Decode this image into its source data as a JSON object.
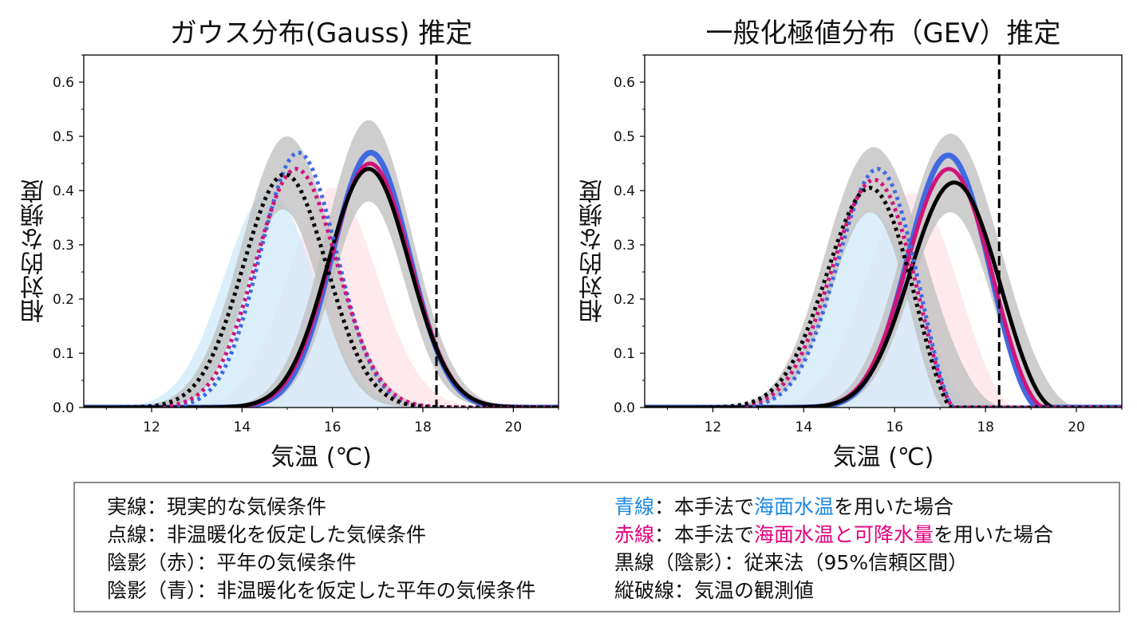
{
  "colors": {
    "blue": "#4169e1",
    "pink": "#d0147a",
    "black": "#000000",
    "gray_band": "#bdbdbd",
    "light_blue_fill": "#cfeaf8",
    "light_pink_fill": "#fde1e7",
    "legend_blue_text": "#1e88e5",
    "legend_pink_text": "#e6007e"
  },
  "legend": {
    "solid": "実線：現実的な気候条件",
    "dotted": "点線：非温暖化を仮定した気候条件",
    "shade_red": "陰影（赤）：平年の気候条件",
    "shade_blue": "陰影（青）：非温暖化を仮定した平年の気候条件",
    "blue_prefix": "青線",
    "blue_mid": "：本手法で",
    "blue_key": "海面水温",
    "blue_suffix": "を用いた場合",
    "red_prefix": "赤線",
    "red_mid": "：本手法で",
    "red_key": "海面水温と可降水量",
    "red_suffix": "を用いた場合",
    "black": "黒線（陰影）：従来法（95%信頼区間）",
    "vline": "縦破線：気温の観測値"
  },
  "chart_data": [
    {
      "type": "line",
      "title": "ガウス分布(Gauss) 推定",
      "xlabel": "気温 (℃)",
      "ylabel": "相対的な頻度",
      "xlim": [
        10.5,
        21
      ],
      "ylim": [
        0,
        0.65
      ],
      "xticks": [
        12,
        14,
        16,
        18,
        20
      ],
      "xticklabels": [
        "12",
        "14",
        "16",
        "18",
        "20"
      ],
      "yticks": [
        0.0,
        0.1,
        0.2,
        0.3,
        0.4,
        0.5,
        0.6
      ],
      "yticklabels": [
        "0.0",
        "0.1",
        "0.2",
        "0.3",
        "0.4",
        "0.5",
        "0.6"
      ],
      "observed_x": 18.3,
      "shades": [
        {
          "color": "light_pink",
          "dist": "gauss",
          "mu": 16.0,
          "sigma": 0.98,
          "peak": 0.405
        },
        {
          "color": "light_blue",
          "dist": "gauss",
          "mu": 14.6,
          "sigma": 0.99,
          "peak": 0.4
        }
      ],
      "bands": [
        {
          "dist": "gauss",
          "lower": {
            "mu": 16.8,
            "sigma": 0.8,
            "peak": 0.38
          },
          "upper": {
            "mu": 16.8,
            "sigma": 0.95,
            "peak": 0.53
          }
        },
        {
          "dist": "gauss",
          "lower": {
            "mu": 14.9,
            "sigma": 0.8,
            "peak": 0.365
          },
          "upper": {
            "mu": 15.0,
            "sigma": 1.0,
            "peak": 0.5
          }
        }
      ],
      "series": [
        {
          "name": "青線",
          "color": "blue",
          "style": "solid",
          "dist": "gauss",
          "mu": 16.85,
          "sigma": 0.845,
          "peak": 0.47
        },
        {
          "name": "赤線",
          "color": "pink",
          "style": "solid",
          "dist": "gauss",
          "mu": 16.83,
          "sigma": 0.88,
          "peak": 0.45
        },
        {
          "name": "黒線",
          "color": "black",
          "style": "solid",
          "dist": "gauss",
          "mu": 16.8,
          "sigma": 0.895,
          "peak": 0.44
        },
        {
          "name": "青線",
          "color": "blue",
          "style": "dotted",
          "dist": "gauss",
          "mu": 15.25,
          "sigma": 0.845,
          "peak": 0.47
        },
        {
          "name": "赤線",
          "color": "pink",
          "style": "dotted",
          "dist": "gauss",
          "mu": 15.2,
          "sigma": 0.9,
          "peak": 0.44
        },
        {
          "name": "黒線",
          "color": "black",
          "style": "dotted",
          "dist": "gauss",
          "mu": 14.95,
          "sigma": 0.925,
          "peak": 0.43
        }
      ]
    },
    {
      "type": "line",
      "title": "一般化極値分布（GEV）推定",
      "xlabel": "気温 (℃)",
      "ylabel": "相対的な頻度",
      "xlim": [
        10.5,
        21
      ],
      "ylim": [
        0,
        0.65
      ],
      "xticks": [
        12,
        14,
        16,
        18,
        20
      ],
      "xticklabels": [
        "12",
        "14",
        "16",
        "18",
        "20"
      ],
      "yticks": [
        0.0,
        0.1,
        0.2,
        0.3,
        0.4,
        0.5,
        0.6
      ],
      "yticklabels": [
        "0.0",
        "0.1",
        "0.2",
        "0.3",
        "0.4",
        "0.5",
        "0.6"
      ],
      "observed_x": 18.3,
      "shades": [
        {
          "color": "light_pink",
          "dist": "gev",
          "mode": 16.0,
          "scale": 0.94,
          "xi": -0.35,
          "peak": 0.395
        },
        {
          "color": "light_blue",
          "dist": "gev",
          "mode": 15.1,
          "scale": 0.94,
          "xi": -0.35,
          "peak": 0.36
        }
      ],
      "bands": [
        {
          "dist": "gev",
          "lower": {
            "mode": 16.9,
            "scale": 0.82,
            "xi": -0.35,
            "peak": 0.36
          },
          "upper": {
            "mode": 16.9,
            "scale": 0.98,
            "xi": -0.3,
            "peak": 0.505
          }
        },
        {
          "dist": "gev",
          "lower": {
            "mode": 15.1,
            "scale": 0.78,
            "xi": -0.4,
            "peak": 0.36
          },
          "upper": {
            "mode": 15.2,
            "scale": 1.0,
            "xi": -0.3,
            "peak": 0.48
          }
        }
      ],
      "series": [
        {
          "name": "青線",
          "color": "blue",
          "style": "solid",
          "dist": "gev",
          "mode": 16.85,
          "scale": 0.82,
          "xi": -0.35,
          "peak": 0.465
        },
        {
          "name": "赤線",
          "color": "pink",
          "style": "solid",
          "dist": "gev",
          "mode": 16.85,
          "scale": 0.86,
          "xi": -0.35,
          "peak": 0.44
        },
        {
          "name": "黒線",
          "color": "black",
          "style": "solid",
          "dist": "gev",
          "mode": 16.95,
          "scale": 0.9,
          "xi": -0.35,
          "peak": 0.415
        },
        {
          "name": "青線",
          "color": "blue",
          "style": "dotted",
          "dist": "gev",
          "mode": 15.25,
          "scale": 0.82,
          "xi": -0.4,
          "peak": 0.44
        },
        {
          "name": "赤線",
          "color": "pink",
          "style": "dotted",
          "dist": "gev",
          "mode": 15.15,
          "scale": 0.86,
          "xi": -0.4,
          "peak": 0.42
        },
        {
          "name": "黒線",
          "color": "black",
          "style": "dotted",
          "dist": "gev",
          "mode": 15.05,
          "scale": 0.88,
          "xi": -0.4,
          "peak": 0.405
        }
      ]
    }
  ]
}
